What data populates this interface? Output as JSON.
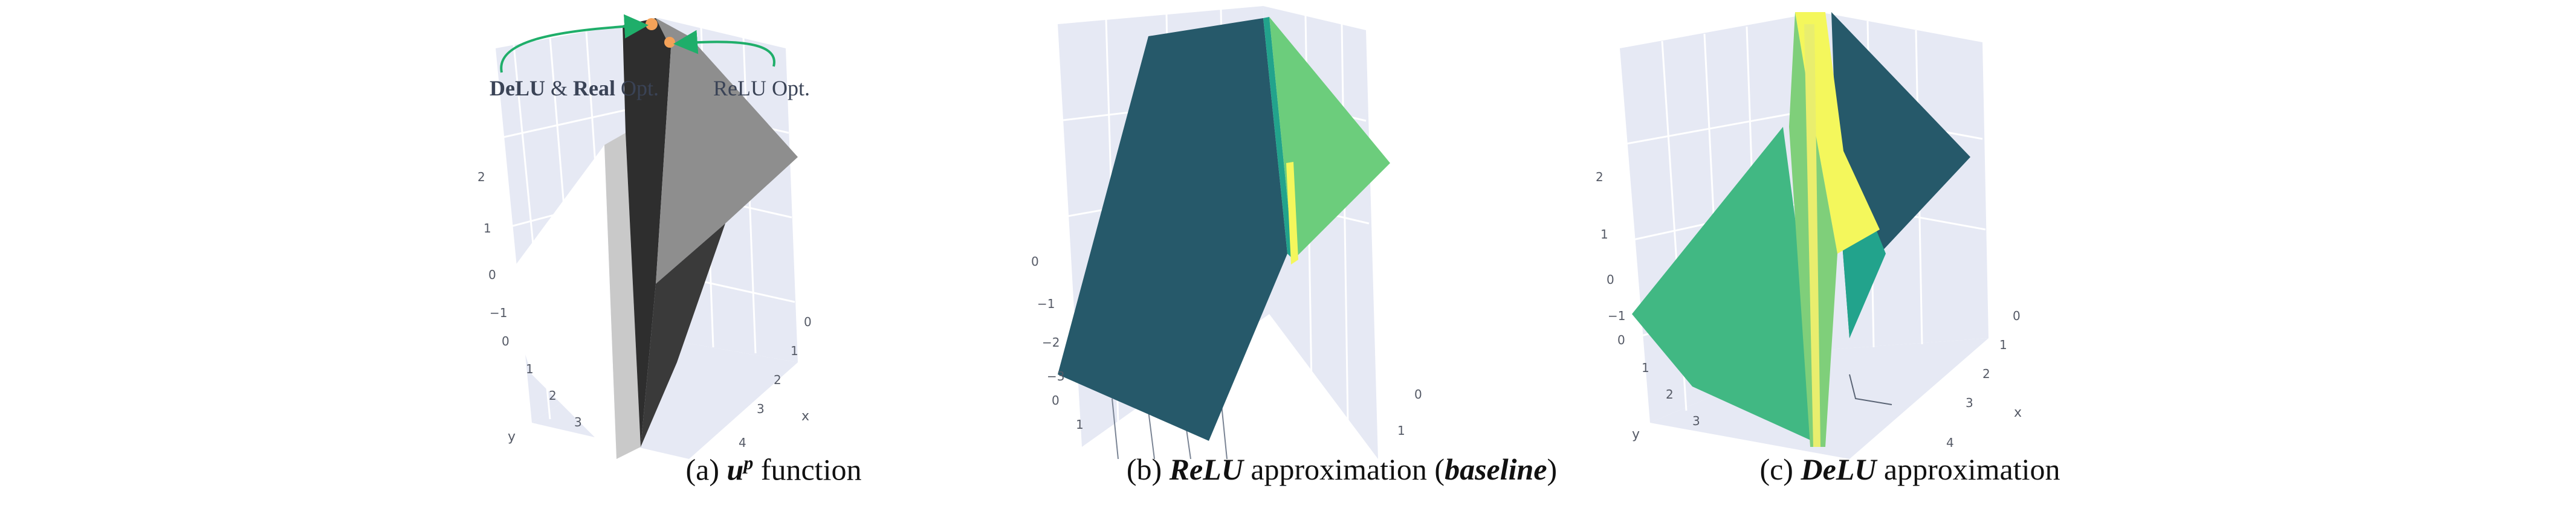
{
  "colors": {
    "pane": "#e6e9f4",
    "grid": "#ffffff",
    "dark_teal": "#26596a",
    "light_green": "#6ccd7c",
    "yellow": "#f4f75c",
    "teal_green": "#22a38c",
    "mid_green": "#41b883",
    "arrow_green": "#1fae6a",
    "opt_orange": "#f4a259",
    "gray_light": "#c9c9c9",
    "gray_mid": "#8e8e8e",
    "gray_dark": "#2e2e2e"
  },
  "panel_a": {
    "caption_prefix": "(a) ",
    "caption_symbol": "u",
    "caption_sup": "p",
    "caption_suffix": " function",
    "annotation_left_bold1": "DeLU",
    "annotation_left_amp": " & ",
    "annotation_left_bold2": "Real",
    "annotation_left_rest": " Opt.",
    "annotation_right": "ReLU Opt.",
    "z_ticks": [
      "2",
      "1",
      "0",
      "−1"
    ],
    "y_ticks": [
      "0",
      "1",
      "2",
      "3"
    ],
    "y_label": "y",
    "x_ticks": [
      "0",
      "1",
      "2",
      "3",
      "4"
    ],
    "x_label": "x"
  },
  "panel_b": {
    "caption_prefix": "(b) ",
    "caption_italic": "ReLU",
    "caption_middle": " approximation (",
    "caption_italic2": "baseline",
    "caption_suffix": ")",
    "z_ticks": [
      "0",
      "−1",
      "−2",
      "−3"
    ],
    "y_ticks": [
      "0",
      "1"
    ],
    "x_ticks": [
      "0",
      "1"
    ]
  },
  "panel_c": {
    "caption_prefix": "(c) ",
    "caption_italic": "DeLU",
    "caption_suffix": " approximation",
    "z_ticks": [
      "2",
      "1",
      "0",
      "−1"
    ],
    "y_ticks": [
      "0",
      "1",
      "2",
      "3"
    ],
    "y_label": "y",
    "x_ticks": [
      "0",
      "1",
      "2",
      "3",
      "4"
    ],
    "x_label": "x"
  }
}
